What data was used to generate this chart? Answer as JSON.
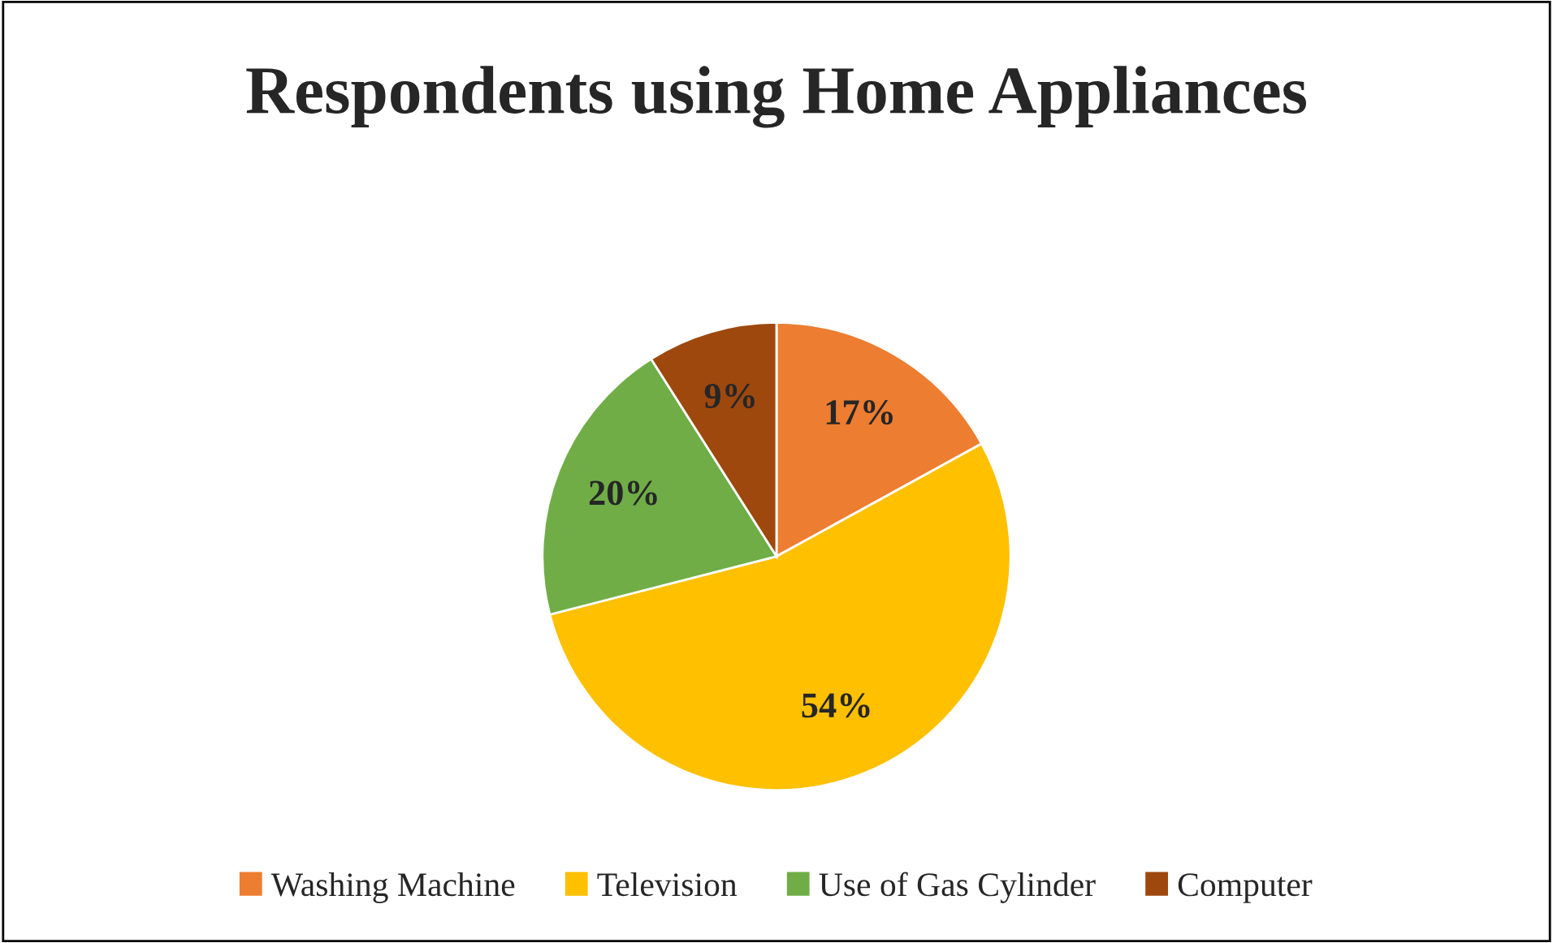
{
  "chart_data": {
    "type": "pie",
    "title": "Respondents using Home Appliances",
    "categories": [
      "Washing Machine",
      "Television",
      "Use of Gas Cylinder",
      "Computer"
    ],
    "values": [
      17,
      54,
      20,
      9
    ],
    "colors": [
      "#ed7d31",
      "#ffc000",
      "#70ad47",
      "#9e480e"
    ],
    "value_labels": [
      "17%",
      "54%",
      "20%",
      "9%"
    ],
    "legend": "bottom"
  }
}
